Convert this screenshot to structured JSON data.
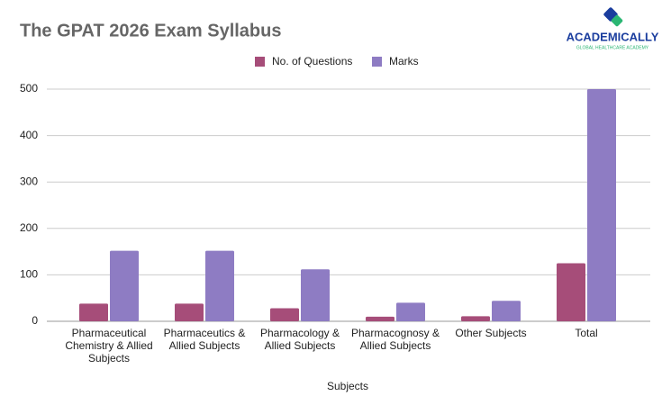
{
  "chart_data": {
    "type": "bar",
    "title": "The GPAT 2026 Exam Syllabus",
    "x_label": "Subjects",
    "categories": [
      "Pharmaceutical Chemistry & Allied Subjects",
      "Pharmaceutics & Allied Subjects",
      "Pharmacology & Allied Subjects",
      "Pharmacognosy & Allied Subjects",
      "Other Subjects",
      "Total"
    ],
    "series": [
      {
        "name": "No. of Questions",
        "color": "#a64d79",
        "values": [
          38,
          38,
          28,
          10,
          11,
          125
        ]
      },
      {
        "name": "Marks",
        "color": "#8e7cc3",
        "values": [
          152,
          152,
          112,
          40,
          44,
          500
        ]
      }
    ],
    "ylim": [
      0,
      500
    ],
    "yticks": [
      0,
      100,
      200,
      300,
      400,
      500
    ],
    "grid": true,
    "legend": "top"
  },
  "logo": {
    "name": "ACADEMICALLY",
    "tagline": "GLOBAL HEALTHCARE ACADEMY"
  }
}
